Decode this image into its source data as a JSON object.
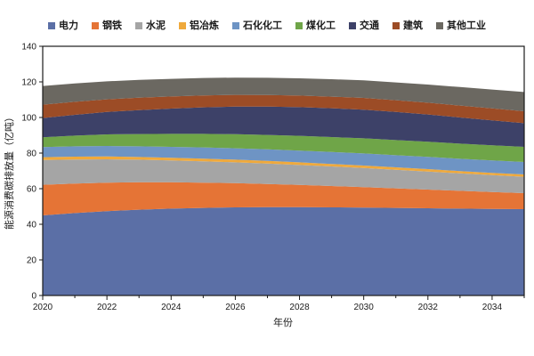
{
  "chart_data": {
    "type": "area",
    "stacked": true,
    "title": "",
    "xlabel": "年份",
    "ylabel": "能源消费碳排放量（亿吨）",
    "x": [
      2020,
      2021,
      2022,
      2023,
      2024,
      2025,
      2026,
      2027,
      2028,
      2029,
      2030,
      2031,
      2032,
      2033,
      2034,
      2035
    ],
    "x_tick_labels": [
      "2020",
      "2022",
      "2024",
      "2026",
      "2028",
      "2030",
      "2032",
      "2034"
    ],
    "xlim": [
      2020,
      2035
    ],
    "ylim": [
      0,
      140
    ],
    "y_ticks": [
      0,
      20,
      40,
      60,
      80,
      100,
      120,
      140
    ],
    "grid": false,
    "legend_position": "top",
    "series": [
      {
        "id": "power",
        "name": "电力",
        "color": "#5B6FA6",
        "values": [
          45.0,
          46.3,
          47.4,
          48.2,
          48.8,
          49.2,
          49.5,
          49.6,
          49.6,
          49.5,
          49.4,
          49.2,
          49.0,
          48.8,
          48.6,
          48.5
        ]
      },
      {
        "id": "steel",
        "name": "钢铁",
        "color": "#E57436",
        "values": [
          17.2,
          16.6,
          16.0,
          15.4,
          14.8,
          14.2,
          13.6,
          13.0,
          12.5,
          12.0,
          11.5,
          11.0,
          10.5,
          10.0,
          9.5,
          9.0
        ]
      },
      {
        "id": "cement",
        "name": "水泥",
        "color": "#A5A5A5",
        "values": [
          13.9,
          13.5,
          13.1,
          12.7,
          12.3,
          12.0,
          11.7,
          11.5,
          11.2,
          11.0,
          10.7,
          10.4,
          10.1,
          9.8,
          9.5,
          9.2
        ]
      },
      {
        "id": "aluminum-smelting",
        "name": "铝冶炼",
        "color": "#EFA93C",
        "values": [
          1.6,
          1.6,
          1.6,
          1.5,
          1.5,
          1.5,
          1.5,
          1.5,
          1.5,
          1.4,
          1.4,
          1.4,
          1.4,
          1.3,
          1.3,
          1.3
        ]
      },
      {
        "id": "petrochemical",
        "name": "石化化工",
        "color": "#6E94C4",
        "values": [
          5.7,
          5.8,
          5.9,
          6.0,
          6.1,
          6.3,
          6.4,
          6.5,
          6.6,
          6.7,
          6.8,
          6.8,
          6.9,
          6.9,
          7.0,
          7.0
        ]
      },
      {
        "id": "coal-chemical",
        "name": "煤化工",
        "color": "#6FA548",
        "values": [
          5.5,
          6.0,
          6.5,
          6.9,
          7.3,
          7.6,
          7.9,
          8.1,
          8.3,
          8.4,
          8.5,
          8.5,
          8.5,
          8.5,
          8.5,
          8.5
        ]
      },
      {
        "id": "transport",
        "name": "交通",
        "color": "#3D4168",
        "values": [
          10.8,
          11.7,
          12.6,
          13.4,
          14.2,
          14.9,
          15.5,
          15.9,
          16.1,
          16.2,
          16.1,
          15.8,
          15.3,
          14.7,
          14.0,
          13.3
        ]
      },
      {
        "id": "building",
        "name": "建筑",
        "color": "#9C4C26",
        "values": [
          7.5,
          7.3,
          7.1,
          7.0,
          6.8,
          6.7,
          6.6,
          6.5,
          6.5,
          6.5,
          6.6,
          6.6,
          6.6,
          6.7,
          6.7,
          6.7
        ]
      },
      {
        "id": "other-industry",
        "name": "其他工业",
        "color": "#6B6861",
        "values": [
          10.5,
          10.3,
          10.1,
          10.0,
          9.9,
          9.8,
          9.7,
          9.7,
          9.7,
          9.8,
          9.9,
          10.0,
          10.2,
          10.4,
          10.6,
          10.8
        ]
      }
    ]
  }
}
